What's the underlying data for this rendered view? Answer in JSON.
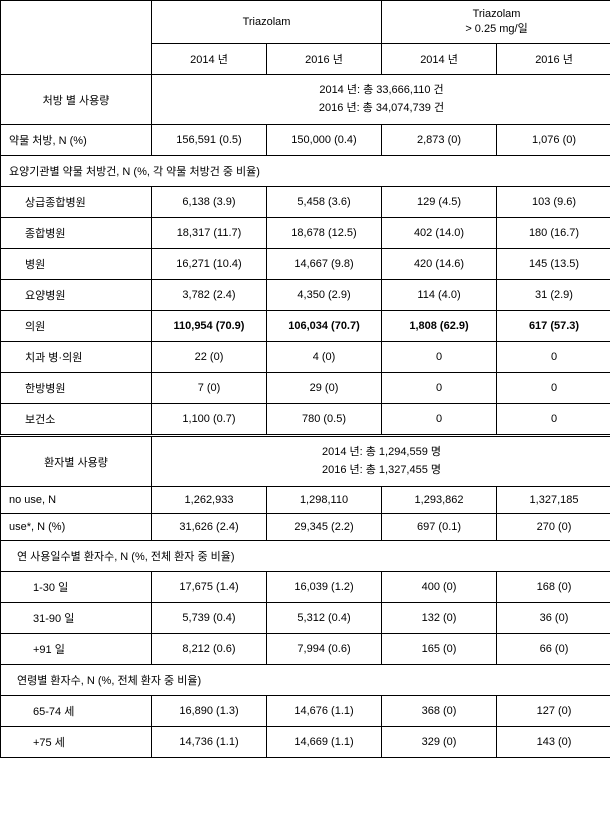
{
  "headers": {
    "group1": "Triazolam",
    "group2": "Triazolam\n> 0.25 mg/일",
    "y2014": "2014 년",
    "y2016": "2016 년"
  },
  "section1": {
    "title": "처방 별 사용량",
    "info_line1": "2014 년: 총 33,666,110 건",
    "info_line2": "2016 년: 총 34,074,739 건"
  },
  "row_drug_presc": {
    "label": "약물 처방, N (%)",
    "v1": "156,591 (0.5)",
    "v2": "150,000 (0.4)",
    "v3": "2,873 (0)",
    "v4": "1,076 (0)"
  },
  "institution_header": "요양기관별 약물 처방건, N (%, 각 약물 처방건 중 비율)",
  "inst_rows": [
    {
      "label": "상급종합병원",
      "v1": "6,138 (3.9)",
      "v2": "5,458 (3.6)",
      "v3": "129 (4.5)",
      "v4": "103 (9.6)"
    },
    {
      "label": "종합병원",
      "v1": "18,317 (11.7)",
      "v2": "18,678 (12.5)",
      "v3": "402 (14.0)",
      "v4": "180 (16.7)"
    },
    {
      "label": "병원",
      "v1": "16,271 (10.4)",
      "v2": "14,667 (9.8)",
      "v3": "420 (14.6)",
      "v4": "145 (13.5)"
    },
    {
      "label": "요양병원",
      "v1": "3,782 (2.4)",
      "v2": "4,350 (2.9)",
      "v3": "114 (4.0)",
      "v4": "31 (2.9)"
    },
    {
      "label": "의원",
      "v1": "110,954 (70.9)",
      "v2": "106,034 (70.7)",
      "v3": "1,808 (62.9)",
      "v4": "617 (57.3)",
      "bold": true
    },
    {
      "label": "치과 병·의원",
      "v1": "22 (0)",
      "v2": "4 (0)",
      "v3": "0",
      "v4": "0"
    },
    {
      "label": "한방병원",
      "v1": "7 (0)",
      "v2": "29 (0)",
      "v3": "0",
      "v4": "0"
    },
    {
      "label": "보건소",
      "v1": "1,100 (0.7)",
      "v2": "780 (0.5)",
      "v3": "0",
      "v4": "0"
    }
  ],
  "section2": {
    "title": "환자별 사용량",
    "info_line1": "2014 년: 총 1,294,559 명",
    "info_line2": "2016 년: 총 1,327,455 명"
  },
  "row_nouse": {
    "label": "no use, N",
    "v1": "1,262,933",
    "v2": "1,298,110",
    "v3": "1,293,862",
    "v4": "1,327,185"
  },
  "row_use": {
    "label": "use*, N (%)",
    "v1": "31,626 (2.4)",
    "v2": "29,345 (2.2)",
    "v3": "697 (0.1)",
    "v4": "270 (0)"
  },
  "days_header": "연 사용일수별 환자수, N (%, 전체 환자 중 비율)",
  "days_rows": [
    {
      "label": "1-30 일",
      "v1": "17,675 (1.4)",
      "v2": "16,039 (1.2)",
      "v3": "400 (0)",
      "v4": "168 (0)"
    },
    {
      "label": "31-90 일",
      "v1": "5,739 (0.4)",
      "v2": "5,312 (0.4)",
      "v3": "132 (0)",
      "v4": "36 (0)"
    },
    {
      "label": "+91 일",
      "v1": "8,212 (0.6)",
      "v2": "7,994 (0.6)",
      "v3": "165 (0)",
      "v4": "66 (0)"
    }
  ],
  "age_header": "연령별 환자수, N (%, 전체 환자 중 비율)",
  "age_rows": [
    {
      "label": "65-74 세",
      "v1": "16,890 (1.3)",
      "v2": "14,676 (1.1)",
      "v3": "368 (0)",
      "v4": "127 (0)"
    },
    {
      "label": "+75 세",
      "v1": "14,736 (1.1)",
      "v2": "14,669 (1.1)",
      "v3": "329 (0)",
      "v4": "143 (0)"
    }
  ]
}
